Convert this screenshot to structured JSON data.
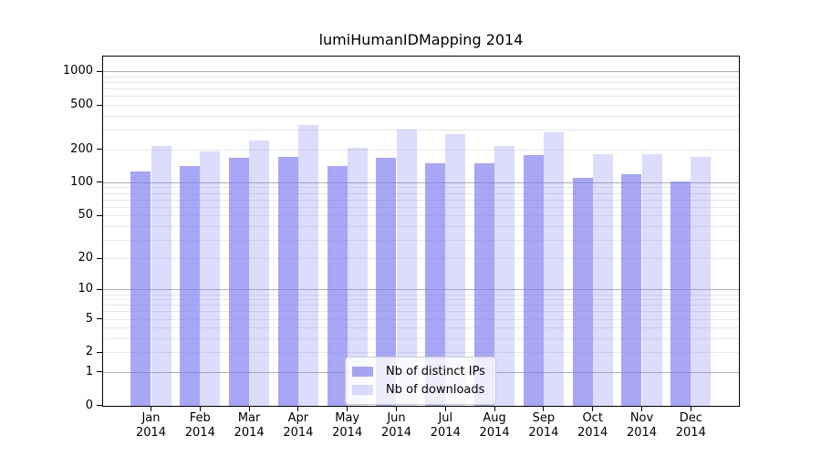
{
  "title": "lumiHumanIDMapping 2014",
  "chart_data": {
    "type": "bar",
    "title": "lumiHumanIDMapping 2014",
    "categories": [
      "Jan 2014",
      "Feb 2014",
      "Mar 2014",
      "Apr 2014",
      "May 2014",
      "Jun 2014",
      "Jul 2014",
      "Aug 2014",
      "Sep 2014",
      "Oct 2014",
      "Nov 2014",
      "Dec 2014"
    ],
    "series": [
      {
        "name": "Nb of distinct IPs",
        "color": "#7a7af2a8",
        "values": [
          128,
          142,
          169,
          171,
          141,
          170,
          151,
          151,
          178,
          112,
          120,
          103
        ]
      },
      {
        "name": "Nb of downloads",
        "color": "#7a7af244",
        "values": [
          217,
          191,
          241,
          331,
          209,
          301,
          278,
          214,
          287,
          182,
          181,
          173
        ]
      }
    ],
    "yscale": "log1p",
    "ylim": [
      0,
      1380
    ],
    "yticks": [
      1000,
      500,
      200,
      100,
      50,
      20,
      10,
      5,
      2,
      1,
      0
    ],
    "grid": "on",
    "grid_major_values": [
      1,
      10,
      100,
      1000
    ],
    "grid_minor_values": [
      2,
      3,
      4,
      5,
      6,
      7,
      8,
      9,
      20,
      30,
      40,
      50,
      60,
      70,
      80,
      90,
      200,
      300,
      400,
      500,
      600,
      700,
      800,
      900
    ],
    "legend_position": "lower center"
  },
  "legend": {
    "items": [
      {
        "label": "Nb of distinct IPs",
        "color": "#7a7af2a8"
      },
      {
        "label": "Nb of downloads",
        "color": "#7a7af244"
      }
    ]
  },
  "colors": {
    "background": "#ffffff",
    "frame": "#000000",
    "grid_major": "#b0b0b0",
    "grid_minor": "#e8e8e8",
    "bar_distinct_ips": "#7a7af2a8",
    "bar_downloads": "#7a7af244",
    "text": "#000000",
    "legend_border": "#cccccc"
  }
}
